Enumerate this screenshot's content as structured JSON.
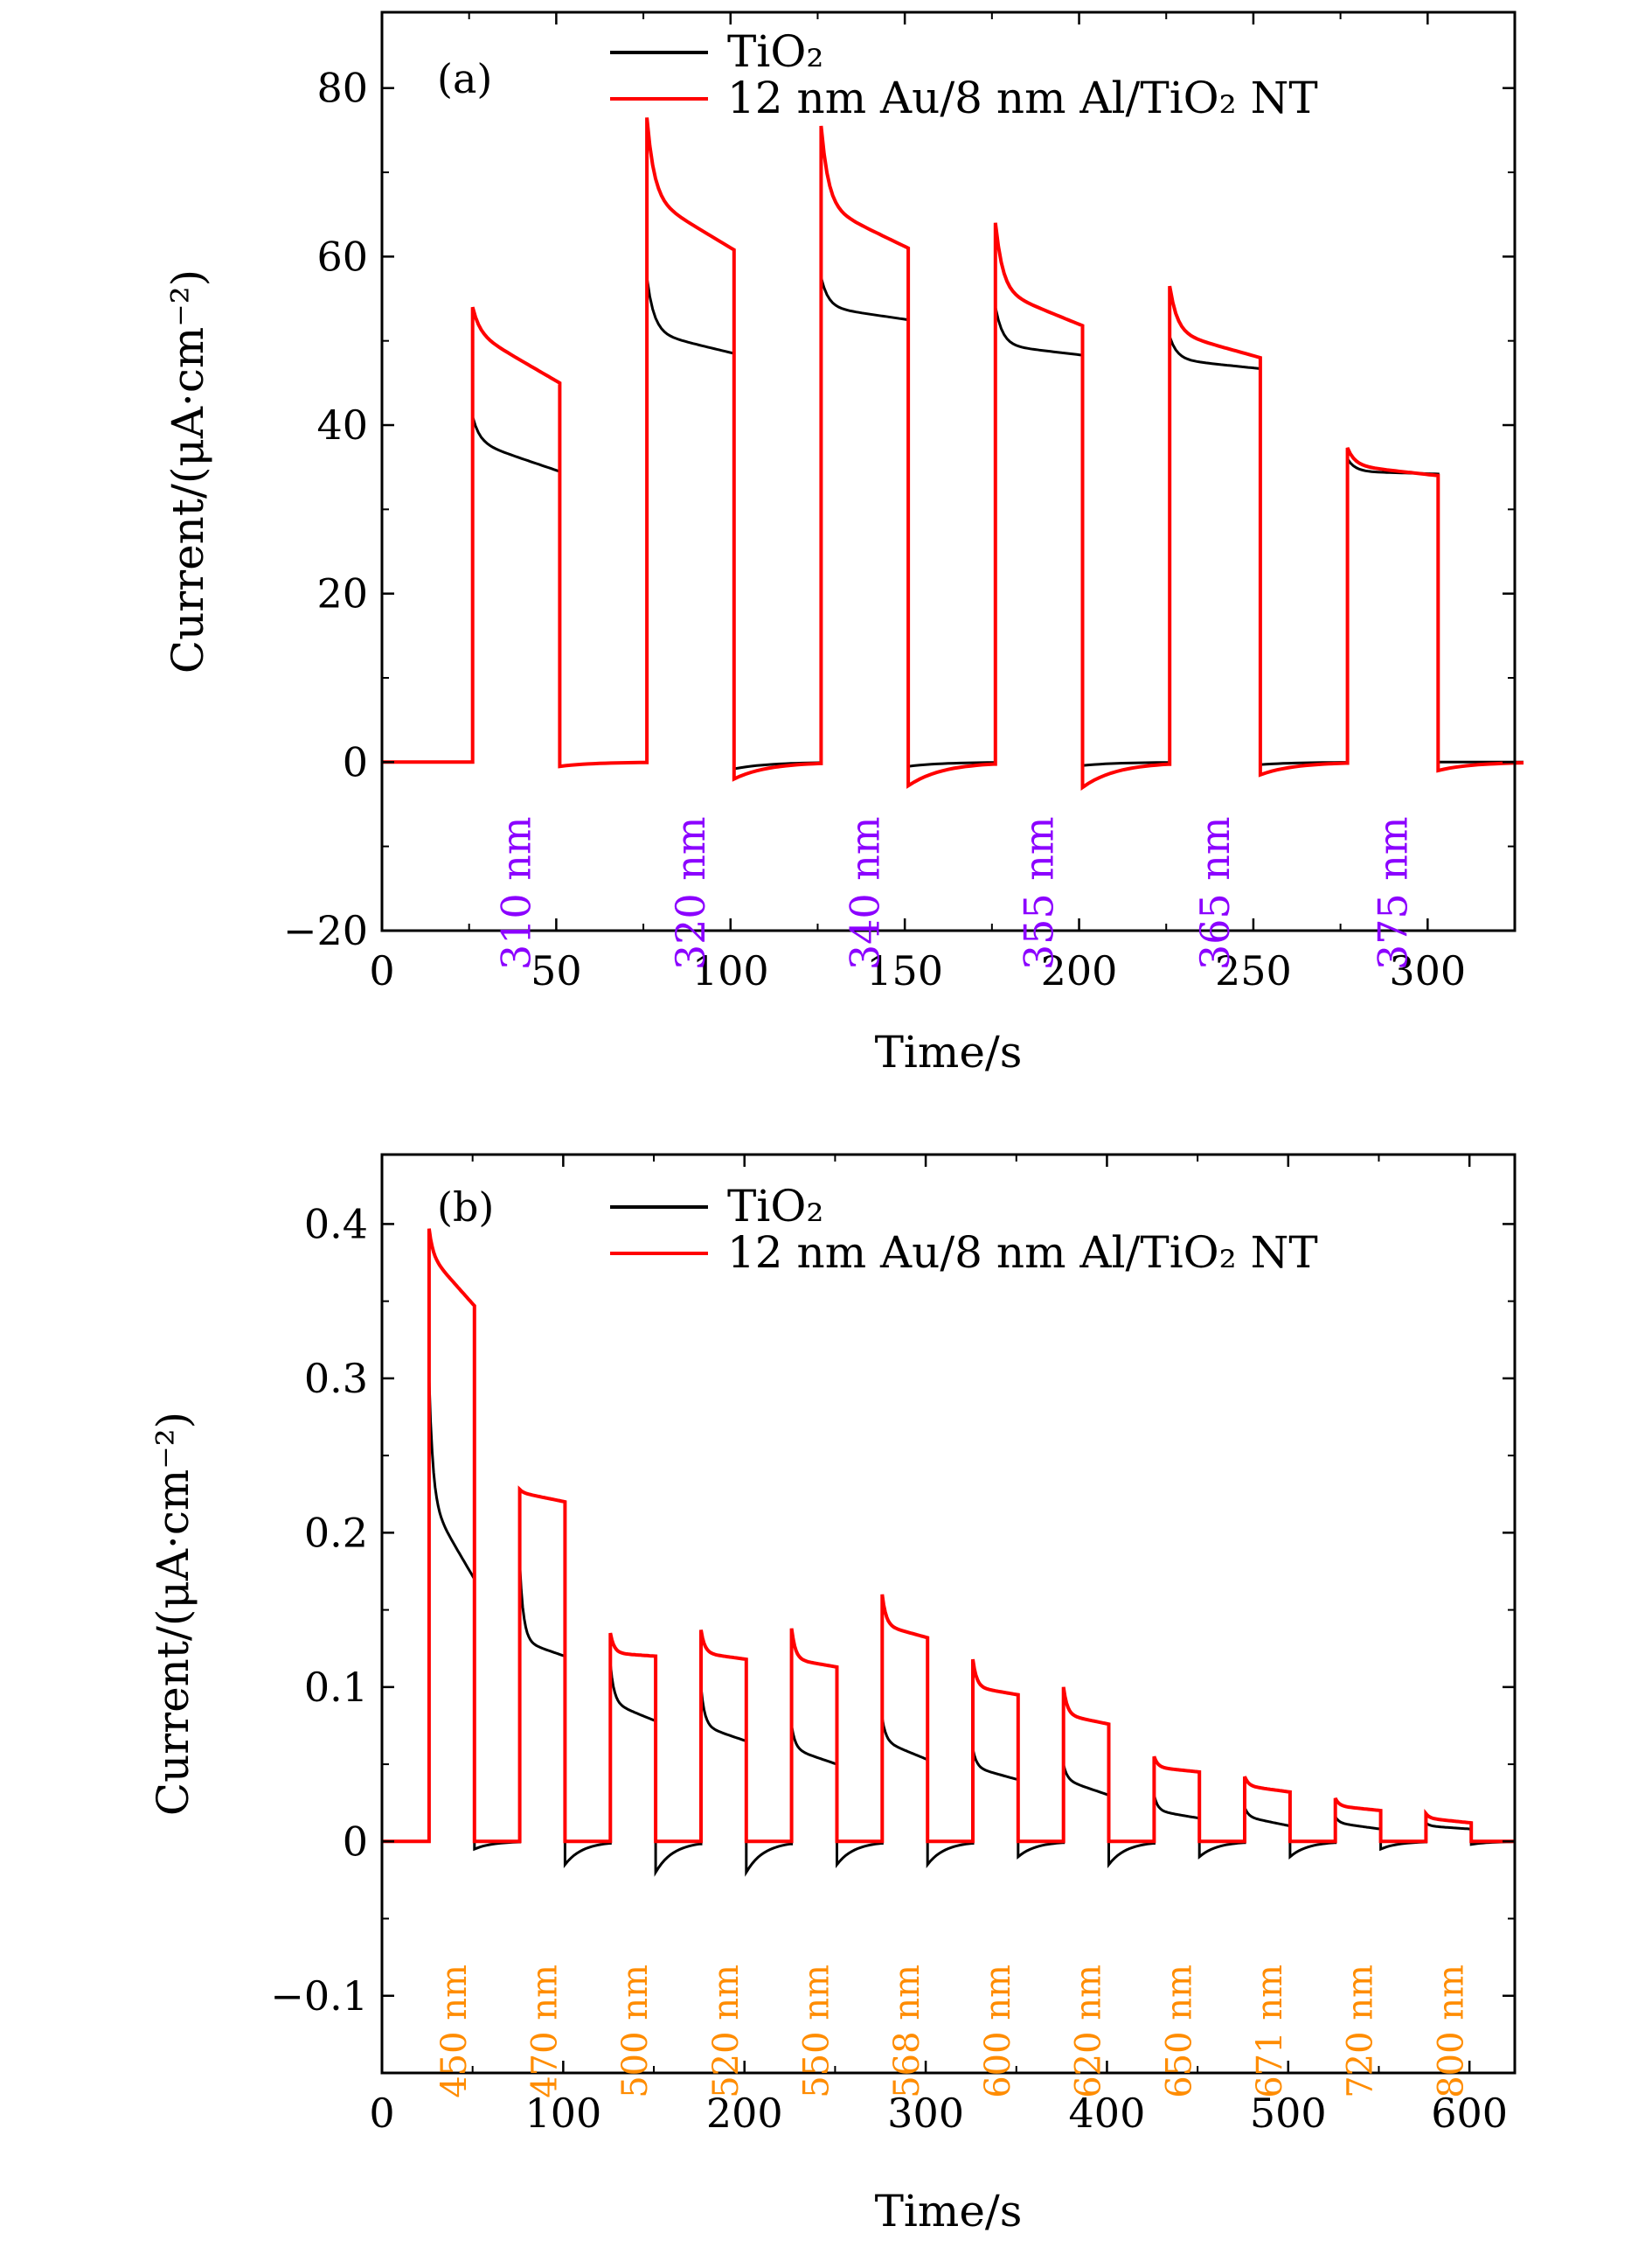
{
  "chart_data": [
    {
      "type": "line",
      "panel_label": "(a)",
      "title": "",
      "xlabel": "Time/s",
      "ylabel": "Current/(μA·cm⁻²)",
      "xlim": [
        0,
        325
      ],
      "ylim": [
        -20,
        89
      ],
      "xticks": [
        0,
        50,
        100,
        150,
        200,
        250,
        300
      ],
      "yticks": [
        -20,
        0,
        20,
        40,
        60,
        80
      ],
      "ytick_labels": [
        "−20",
        "0",
        "20",
        "40",
        "60",
        "80"
      ],
      "legend": {
        "position": "top-right",
        "entries": [
          "TiO₂",
          "12 nm Au/8 nm Al/TiO₂ NT"
        ]
      },
      "series": [
        {
          "name": "TiO₂",
          "color": "#000000",
          "pulses": [
            {
              "on": 26,
              "off": 51,
              "peak": 41,
              "plateau": 38,
              "end": 34.5,
              "after": -0.5
            },
            {
              "on": 76,
              "off": 101,
              "peak": 57.5,
              "plateau": 51,
              "end": 48.5,
              "after": -0.8
            },
            {
              "on": 126,
              "off": 151,
              "peak": 57.5,
              "plateau": 54,
              "end": 52.5,
              "after": -0.5
            },
            {
              "on": 176,
              "off": 201,
              "peak": 54,
              "plateau": 49.5,
              "end": 48.3,
              "after": -0.4
            },
            {
              "on": 226,
              "off": 252,
              "peak": 50.5,
              "plateau": 47.8,
              "end": 46.7,
              "after": -0.3
            },
            {
              "on": 277,
              "off": 303,
              "peak": 36,
              "plateau": 34.5,
              "end": 34.2,
              "after": 0
            }
          ]
        },
        {
          "name": "12 nm Au/8 nm Al/TiO₂ NT",
          "color": "#ff0000",
          "pulses": [
            {
              "on": 26,
              "off": 51,
              "peak": 54,
              "plateau": 51,
              "end": 45,
              "after": -0.5
            },
            {
              "on": 76,
              "off": 101,
              "peak": 76.5,
              "plateau": 67,
              "end": 60.8,
              "after": -2
            },
            {
              "on": 126,
              "off": 151,
              "peak": 75.5,
              "plateau": 66,
              "end": 61,
              "after": -2.8
            },
            {
              "on": 176,
              "off": 201,
              "peak": 64,
              "plateau": 56,
              "end": 51.8,
              "after": -3
            },
            {
              "on": 226,
              "off": 252,
              "peak": 56.5,
              "plateau": 51,
              "end": 48,
              "after": -1.5
            },
            {
              "on": 277,
              "off": 303,
              "peak": 37.3,
              "plateau": 35.2,
              "end": 34,
              "after": -1
            }
          ]
        }
      ],
      "wavelength_labels": [
        "310 nm",
        "320 nm",
        "340 nm",
        "355 nm",
        "365 nm",
        "375 nm"
      ],
      "wavelength_color": "#8b00ff"
    },
    {
      "type": "line",
      "panel_label": "(b)",
      "title": "",
      "xlabel": "Time/s",
      "ylabel": "Current/(μA·cm⁻²)",
      "xlim": [
        0,
        625
      ],
      "ylim": [
        -0.15,
        0.445
      ],
      "xticks": [
        0,
        100,
        200,
        300,
        400,
        500,
        600
      ],
      "yticks": [
        -0.1,
        0,
        0.1,
        0.2,
        0.3,
        0.4
      ],
      "ytick_labels": [
        "−0.1",
        "0",
        "0.1",
        "0.2",
        "0.3",
        "0.4"
      ],
      "legend": {
        "position": "top-right",
        "entries": [
          "TiO₂",
          "12 nm Au/8 nm Al/TiO₂ NT"
        ]
      },
      "series": [
        {
          "name": "TiO₂",
          "color": "#000000",
          "pulses": [
            {
              "on": 26,
              "off": 51,
              "peak": 0.3,
              "plateau": 0.22,
              "end": 0.17,
              "after": -0.005
            },
            {
              "on": 76,
              "off": 101,
              "peak": 0.18,
              "plateau": 0.13,
              "end": 0.12,
              "after": -0.015
            },
            {
              "on": 126,
              "off": 151,
              "peak": 0.115,
              "plateau": 0.09,
              "end": 0.078,
              "after": -0.02
            },
            {
              "on": 176,
              "off": 201,
              "peak": 0.1,
              "plateau": 0.075,
              "end": 0.065,
              "after": -0.02
            },
            {
              "on": 226,
              "off": 251,
              "peak": 0.075,
              "plateau": 0.06,
              "end": 0.05,
              "after": -0.015
            },
            {
              "on": 276,
              "off": 301,
              "peak": 0.08,
              "plateau": 0.065,
              "end": 0.053,
              "after": -0.015
            },
            {
              "on": 326,
              "off": 351,
              "peak": 0.06,
              "plateau": 0.048,
              "end": 0.04,
              "after": -0.01
            },
            {
              "on": 376,
              "off": 401,
              "peak": 0.05,
              "plateau": 0.04,
              "end": 0.03,
              "after": -0.015
            },
            {
              "on": 426,
              "off": 451,
              "peak": 0.03,
              "plateau": 0.02,
              "end": 0.015,
              "after": -0.01
            },
            {
              "on": 476,
              "off": 501,
              "peak": 0.022,
              "plateau": 0.016,
              "end": 0.01,
              "after": -0.01
            },
            {
              "on": 526,
              "off": 551,
              "peak": 0.016,
              "plateau": 0.012,
              "end": 0.008,
              "after": -0.005
            },
            {
              "on": 576,
              "off": 601,
              "peak": 0.012,
              "plateau": 0.01,
              "end": 0.008,
              "after": -0.002
            }
          ]
        },
        {
          "name": "12 nm Au/8 nm Al/TiO₂ NT",
          "color": "#ff0000",
          "pulses": [
            {
              "on": 26,
              "off": 51,
              "peak": 0.397,
              "plateau": 0.38,
              "end": 0.347,
              "after": 0.0
            },
            {
              "on": 76,
              "off": 101,
              "peak": 0.228,
              "plateau": 0.226,
              "end": 0.22,
              "after": 0.0
            },
            {
              "on": 126,
              "off": 151,
              "peak": 0.135,
              "plateau": 0.122,
              "end": 0.12,
              "after": 0.0
            },
            {
              "on": 176,
              "off": 201,
              "peak": 0.137,
              "plateau": 0.122,
              "end": 0.118,
              "after": 0.0
            },
            {
              "on": 226,
              "off": 251,
              "peak": 0.138,
              "plateau": 0.118,
              "end": 0.113,
              "after": 0.0
            },
            {
              "on": 276,
              "off": 301,
              "peak": 0.16,
              "plateau": 0.14,
              "end": 0.132,
              "after": 0.0
            },
            {
              "on": 326,
              "off": 351,
              "peak": 0.118,
              "plateau": 0.1,
              "end": 0.095,
              "after": 0.0
            },
            {
              "on": 376,
              "off": 401,
              "peak": 0.1,
              "plateau": 0.082,
              "end": 0.076,
              "after": 0.0
            },
            {
              "on": 426,
              "off": 451,
              "peak": 0.055,
              "plateau": 0.048,
              "end": 0.045,
              "after": 0.0
            },
            {
              "on": 476,
              "off": 501,
              "peak": 0.042,
              "plateau": 0.036,
              "end": 0.032,
              "after": 0.0
            },
            {
              "on": 526,
              "off": 551,
              "peak": 0.028,
              "plateau": 0.023,
              "end": 0.02,
              "after": 0.0
            },
            {
              "on": 576,
              "off": 601,
              "peak": 0.018,
              "plateau": 0.015,
              "end": 0.012,
              "after": 0.0
            }
          ]
        }
      ],
      "wavelength_labels": [
        "450 nm",
        "470 nm",
        "500 nm",
        "520 nm",
        "550 nm",
        "568 nm",
        "600 nm",
        "620 nm",
        "650 nm",
        "671 nm",
        "720 nm",
        "800 nm"
      ],
      "wavelength_color": "#ff8c00"
    }
  ]
}
